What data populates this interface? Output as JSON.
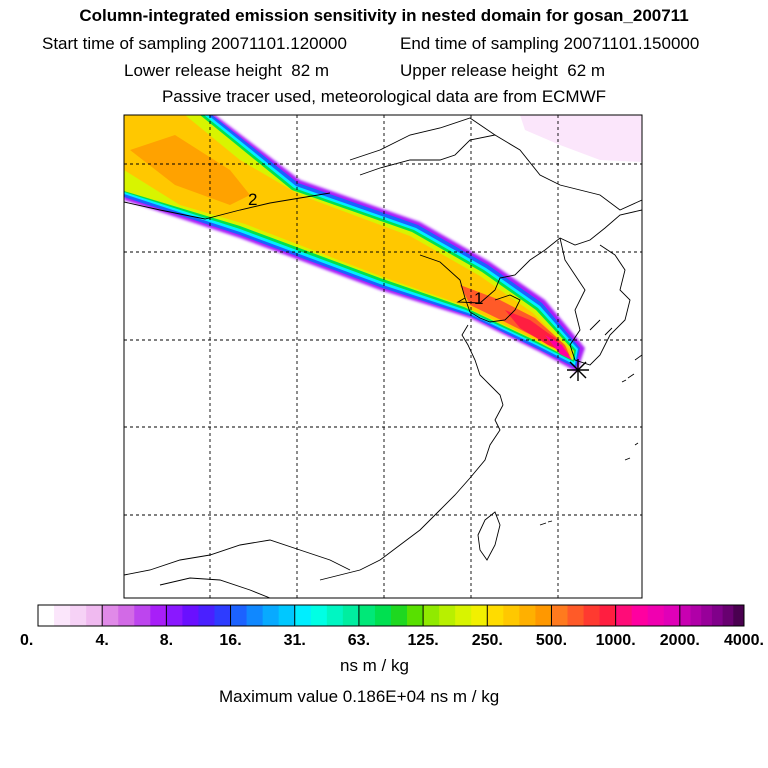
{
  "header": {
    "title": "Column-integrated emission sensitivity in nested domain for gosan_200711",
    "start_label": "Start time of sampling",
    "start_value": "20071101.120000",
    "end_label": "End time of sampling",
    "end_value": "20071101.150000",
    "lower_label": "Lower release height",
    "lower_value": "82 m",
    "upper_label": "Upper release height",
    "upper_value": "62 m",
    "note": "Passive tracer used, meteorological data are from ECMWF"
  },
  "chart_data": {
    "type": "heatmap",
    "title": "Column-integrated emission sensitivity in nested domain for gosan_200711",
    "unit": "ns m / kg",
    "maximum_text": "Maximum value  0.186E+04 ns m / kg",
    "colorbar": {
      "tick_labels": [
        "0.",
        "4.",
        "8.",
        "16.",
        "31.",
        "63.",
        "125.",
        "250.",
        "500.",
        "1000.",
        "2000.",
        "4000."
      ],
      "colors": [
        "#ffffff",
        "#fbe6fb",
        "#f6d2f6",
        "#f0baf0",
        "#e08ae8",
        "#d26ae6",
        "#bd45ee",
        "#a81ff8",
        "#8a18ff",
        "#6a10ff",
        "#4a20ff",
        "#2e3cff",
        "#1c62ff",
        "#1088ff",
        "#08aaff",
        "#00c8ff",
        "#00eeff",
        "#00ffe4",
        "#00f6c2",
        "#00eea0",
        "#00e878",
        "#00e050",
        "#1ed820",
        "#58e000",
        "#90ea00",
        "#b8f000",
        "#d8f400",
        "#f2f000",
        "#ffdc00",
        "#ffc800",
        "#ffb000",
        "#ff9800",
        "#ff7a1e",
        "#ff5a28",
        "#ff3a30",
        "#ff1e40",
        "#ff0c78",
        "#ff00a0",
        "#f000b0",
        "#e000b8",
        "#c800b2",
        "#b000a8",
        "#98009a",
        "#80008a",
        "#680070",
        "#4a0050"
      ],
      "colors_per_interval": [
        4,
        4,
        4,
        4,
        4,
        4,
        4,
        4,
        4,
        4,
        6
      ]
    },
    "map": {
      "grid_lines": "dashed",
      "plume_labels": [
        "2",
        "1"
      ],
      "receptor_marker": "star"
    }
  }
}
